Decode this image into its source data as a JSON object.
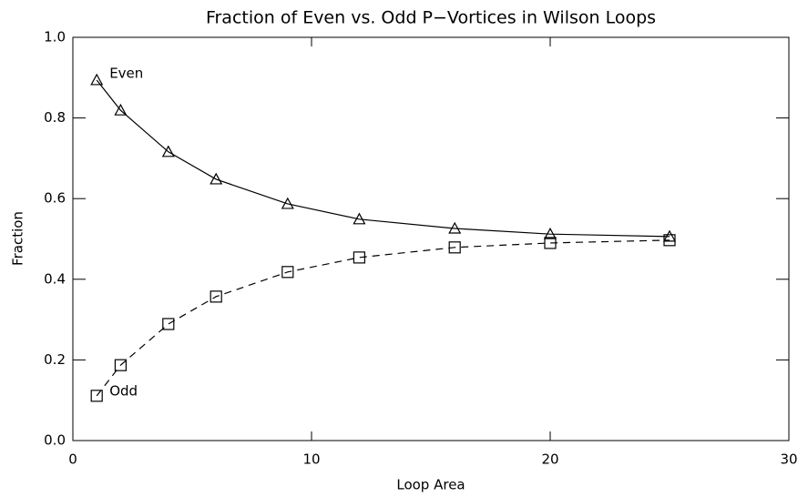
{
  "chart_data": {
    "type": "line",
    "title": "Fraction of Even vs. Odd P−Vortices in Wilson Loops",
    "xlabel": "Loop Area",
    "ylabel": "Fraction",
    "x": [
      1,
      2,
      4,
      6,
      9,
      12,
      16,
      20,
      25
    ],
    "series": [
      {
        "name": "Even",
        "color": "#000000",
        "line_style": "solid",
        "marker": "triangle",
        "values": [
          0.894,
          0.819,
          0.716,
          0.648,
          0.587,
          0.549,
          0.526,
          0.512,
          0.506
        ]
      },
      {
        "name": "Odd",
        "color": "#000000",
        "line_style": "dashed",
        "marker": "square",
        "values": [
          0.111,
          0.187,
          0.289,
          0.357,
          0.418,
          0.454,
          0.479,
          0.49,
          0.497
        ]
      }
    ],
    "xlim": [
      0,
      30
    ],
    "xticks": [
      0,
      10,
      20,
      30
    ],
    "ylim": [
      0,
      1
    ],
    "yticks": [
      {
        "value": 0,
        "label": "0.0"
      },
      0.2,
      0.4,
      0.6,
      0.8,
      {
        "value": 1,
        "label": "1.0"
      }
    ],
    "grid": false
  }
}
